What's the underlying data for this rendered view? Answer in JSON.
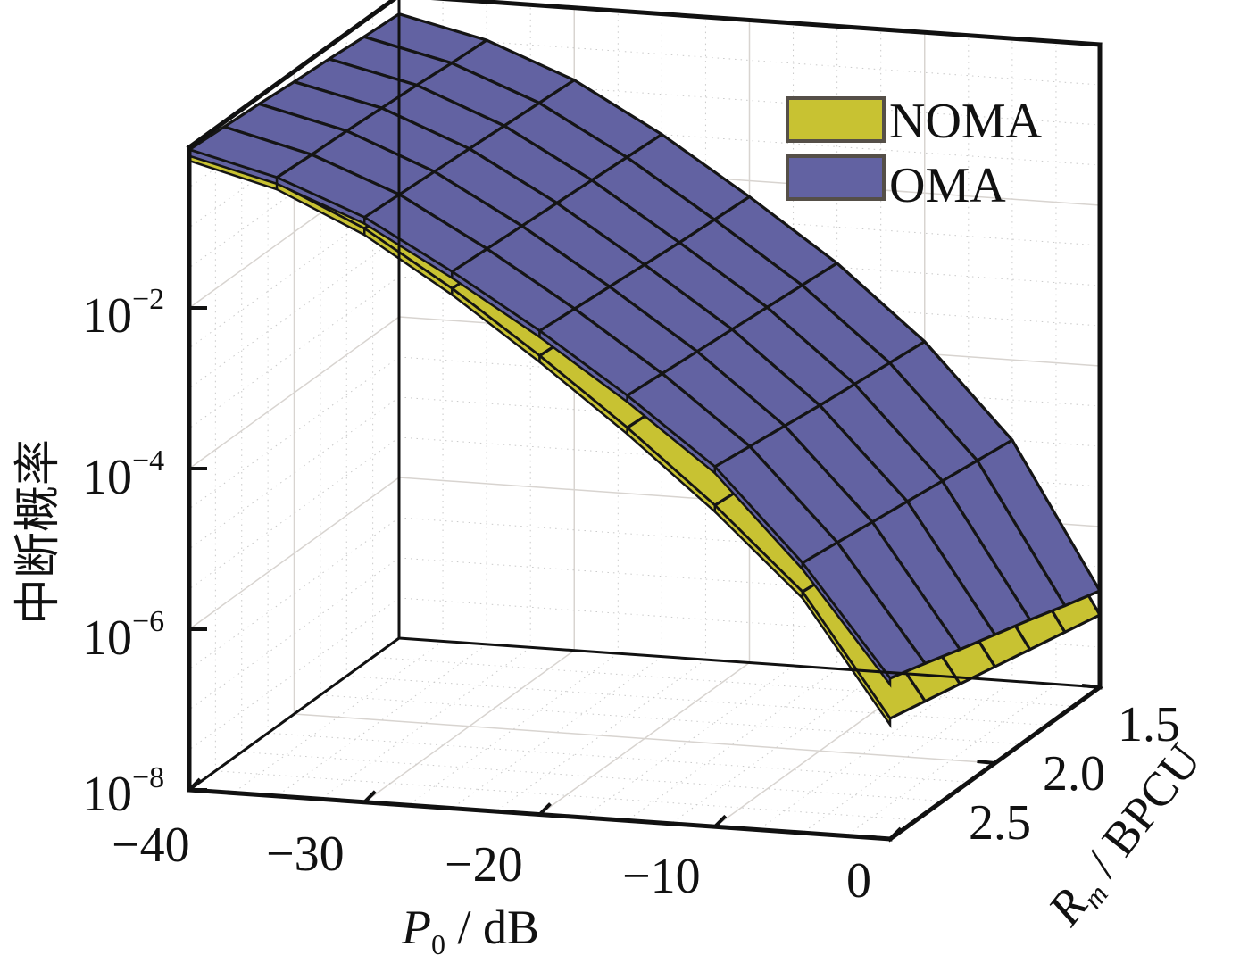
{
  "chart_data": {
    "type": "surface3d",
    "title": "",
    "xlabel": "P_0 / dB",
    "xlabel_main": "P",
    "xlabel_sub": "0",
    "xlabel_rest": " / dB",
    "ylabel": "R_m / BPCU",
    "ylabel_main": "R",
    "ylabel_sub": "m",
    "ylabel_rest": " / BPCU",
    "zlabel": "中断概率",
    "zscale": "log",
    "xlim": [
      -40,
      0
    ],
    "ylim": [
      1.5,
      2.5
    ],
    "zlim_log10": [
      -8,
      0
    ],
    "x_ticks": [
      -40,
      -30,
      -20,
      -10,
      0
    ],
    "x_tick_labels": [
      "−40",
      "−30",
      "−20",
      "−10",
      "0"
    ],
    "y_ticks": [
      1.5,
      2.0,
      2.5
    ],
    "y_tick_labels": [
      "1.5",
      "2.0",
      "2.5"
    ],
    "z_ticks_log10": [
      -8,
      -6,
      -4,
      -2
    ],
    "z_tick_labels": [
      {
        "base": "10",
        "exp": "−8"
      },
      {
        "base": "10",
        "exp": "−6"
      },
      {
        "base": "10",
        "exp": "−4"
      },
      {
        "base": "10",
        "exp": "−2"
      }
    ],
    "grid": true,
    "legend_position": "top-right",
    "x": [
      -40,
      -35,
      -30,
      -25,
      -20,
      -15,
      -10,
      -5,
      0
    ],
    "y": [
      1.5,
      1.6667,
      1.8333,
      2.0,
      2.1667,
      2.3333,
      2.5
    ],
    "series": [
      {
        "name": "NOMA",
        "color": "#c8c232",
        "values_log10": [
          [
            -0.3,
            -0.55,
            -1.05,
            -1.72,
            -2.48,
            -3.3,
            -4.25,
            -5.3,
            -7.1
          ],
          [
            -0.27,
            -0.52,
            -1.01,
            -1.68,
            -2.44,
            -3.26,
            -4.2,
            -5.25,
            -7.0
          ],
          [
            -0.24,
            -0.49,
            -0.98,
            -1.65,
            -2.41,
            -3.23,
            -4.16,
            -5.2,
            -6.9
          ],
          [
            -0.21,
            -0.46,
            -0.95,
            -1.62,
            -2.38,
            -3.2,
            -4.12,
            -5.15,
            -6.8
          ],
          [
            -0.17,
            -0.43,
            -0.92,
            -1.59,
            -2.35,
            -3.17,
            -4.08,
            -5.1,
            -6.7
          ],
          [
            -0.13,
            -0.4,
            -0.89,
            -1.56,
            -2.32,
            -3.14,
            -4.04,
            -5.05,
            -6.6
          ],
          [
            -0.09,
            -0.37,
            -0.86,
            -1.53,
            -2.29,
            -3.11,
            -4.0,
            -5.0,
            -6.5
          ]
        ]
      },
      {
        "name": "OMA",
        "color": "#6262a2",
        "values_log10": [
          [
            -0.23,
            -0.48,
            -0.9,
            -1.5,
            -2.2,
            -2.95,
            -3.85,
            -5.0,
            -6.8
          ],
          [
            -0.2,
            -0.45,
            -0.87,
            -1.47,
            -2.17,
            -2.91,
            -3.8,
            -4.94,
            -6.67
          ],
          [
            -0.16,
            -0.41,
            -0.84,
            -1.44,
            -2.14,
            -2.87,
            -3.75,
            -4.88,
            -6.53
          ],
          [
            -0.13,
            -0.38,
            -0.81,
            -1.41,
            -2.1,
            -2.83,
            -3.7,
            -4.82,
            -6.4
          ],
          [
            -0.09,
            -0.35,
            -0.78,
            -1.38,
            -2.06,
            -2.79,
            -3.64,
            -4.76,
            -6.27
          ],
          [
            -0.06,
            -0.33,
            -0.75,
            -1.35,
            -2.02,
            -2.75,
            -3.58,
            -4.7,
            -6.13
          ],
          [
            -0.03,
            -0.3,
            -0.72,
            -1.32,
            -1.98,
            -2.71,
            -3.52,
            -4.64,
            -6.0
          ]
        ]
      }
    ]
  }
}
